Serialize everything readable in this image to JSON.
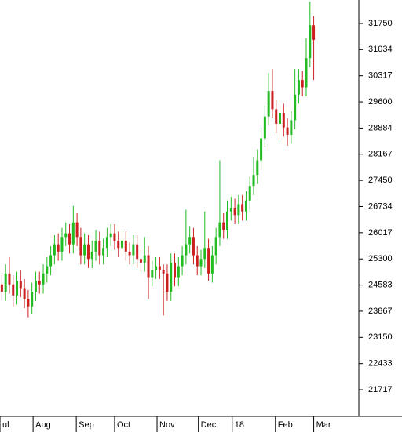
{
  "chart_data": {
    "type": "candlestick",
    "up_color": "#22bb22",
    "down_color": "#cc1f1f",
    "xlim": [
      -0.5,
      95
    ],
    "xticks": [
      {
        "value": -0.5,
        "label": "ul"
      },
      {
        "value": 8.3,
        "label": "Aug"
      },
      {
        "value": 19.8,
        "label": "Sep"
      },
      {
        "value": 30,
        "label": "Oct"
      },
      {
        "value": 41.3,
        "label": "Nov"
      },
      {
        "value": 52.3,
        "label": "Dec"
      },
      {
        "value": 61.3,
        "label": "18"
      },
      {
        "value": 72.8,
        "label": "Feb"
      },
      {
        "value": 83,
        "label": "Mar"
      }
    ],
    "ylim": [
      20987,
      32394
    ],
    "yticks": [
      21717,
      22433,
      23150,
      23867,
      24583,
      25300,
      26017,
      26734,
      27450,
      28167,
      28884,
      29600,
      30317,
      31034,
      31750
    ],
    "open": [
      24600,
      24400,
      24900,
      24600,
      24300,
      24700,
      24500,
      24200,
      24000,
      24400,
      24700,
      24600,
      24900,
      25100,
      25400,
      25700,
      25500,
      25900,
      26000,
      25700,
      26300,
      25900,
      25400,
      25700,
      25300,
      25500,
      25800,
      25400,
      25600,
      25900,
      26000,
      25800,
      25600,
      25800,
      25500,
      25400,
      25700,
      25300,
      25200,
      25400,
      24800,
      25000,
      25100,
      25000,
      24900,
      24400,
      25200,
      24800,
      25100,
      25400,
      25700,
      25900,
      25400,
      25100,
      25300,
      25600,
      24900,
      25400,
      25900,
      26300,
      26100,
      26600,
      26700,
      26500,
      26800,
      26600,
      26900,
      27300,
      27600,
      28000,
      28600,
      29200,
      29900,
      29400,
      29000,
      29300,
      28900,
      28700,
      29100,
      29800,
      30200,
      30000,
      30800,
      31700
    ],
    "high": [
      24850,
      25150,
      25350,
      24850,
      24950,
      25000,
      24750,
      24450,
      24650,
      24950,
      24950,
      25150,
      25350,
      25650,
      25950,
      26000,
      26150,
      26300,
      26250,
      26750,
      26550,
      26150,
      26000,
      25950,
      25800,
      26100,
      26050,
      25850,
      26150,
      26250,
      26250,
      26050,
      26050,
      26050,
      25750,
      25950,
      25950,
      25550,
      25900,
      25650,
      25250,
      25350,
      25350,
      25150,
      25150,
      25450,
      25450,
      25350,
      25650,
      26650,
      26200,
      26150,
      25650,
      25550,
      26600,
      25850,
      25650,
      26150,
      28000,
      26550,
      26900,
      27000,
      26950,
      27050,
      27050,
      27150,
      27550,
      28100,
      28300,
      28900,
      29500,
      30400,
      30500,
      29650,
      29550,
      29550,
      29150,
      29350,
      30500,
      30500,
      30450,
      31350,
      32350,
      31950
    ],
    "low": [
      24150,
      24150,
      24350,
      24000,
      24050,
      24250,
      23950,
      23700,
      23800,
      24150,
      24350,
      24350,
      24650,
      24850,
      25150,
      25250,
      25250,
      25650,
      25450,
      25450,
      25650,
      25150,
      25150,
      25050,
      25050,
      25250,
      25150,
      25150,
      25350,
      25650,
      25550,
      25350,
      25350,
      25250,
      25150,
      25150,
      25050,
      24950,
      24950,
      24200,
      24550,
      24750,
      24750,
      23750,
      24150,
      24150,
      24550,
      24550,
      24850,
      25150,
      25450,
      25150,
      24850,
      24850,
      25050,
      24700,
      24650,
      25150,
      25650,
      25850,
      25850,
      26350,
      26250,
      26250,
      26350,
      26350,
      26650,
      27050,
      27350,
      27750,
      28350,
      28950,
      29150,
      28750,
      28500,
      28650,
      28400,
      28450,
      28850,
      29550,
      29750,
      29750,
      30550,
      30200
    ],
    "close": [
      24400,
      24900,
      24600,
      24300,
      24700,
      24500,
      24200,
      24000,
      24400,
      24700,
      24600,
      24900,
      25100,
      25400,
      25700,
      25500,
      25900,
      26000,
      25700,
      26300,
      25900,
      25400,
      25700,
      25300,
      25500,
      25800,
      25400,
      25600,
      25900,
      26000,
      25800,
      25600,
      25800,
      25500,
      25400,
      25700,
      25300,
      25200,
      25400,
      24800,
      25000,
      25100,
      25000,
      24900,
      24400,
      25200,
      24800,
      25100,
      25400,
      25700,
      25900,
      25400,
      25100,
      25300,
      25600,
      24900,
      25400,
      25900,
      26300,
      26100,
      26600,
      26700,
      26500,
      26800,
      26600,
      26900,
      27300,
      27600,
      28000,
      28600,
      29200,
      29900,
      29400,
      29000,
      29300,
      28900,
      28700,
      29100,
      29800,
      30200,
      30000,
      30800,
      31700,
      31300
    ]
  }
}
